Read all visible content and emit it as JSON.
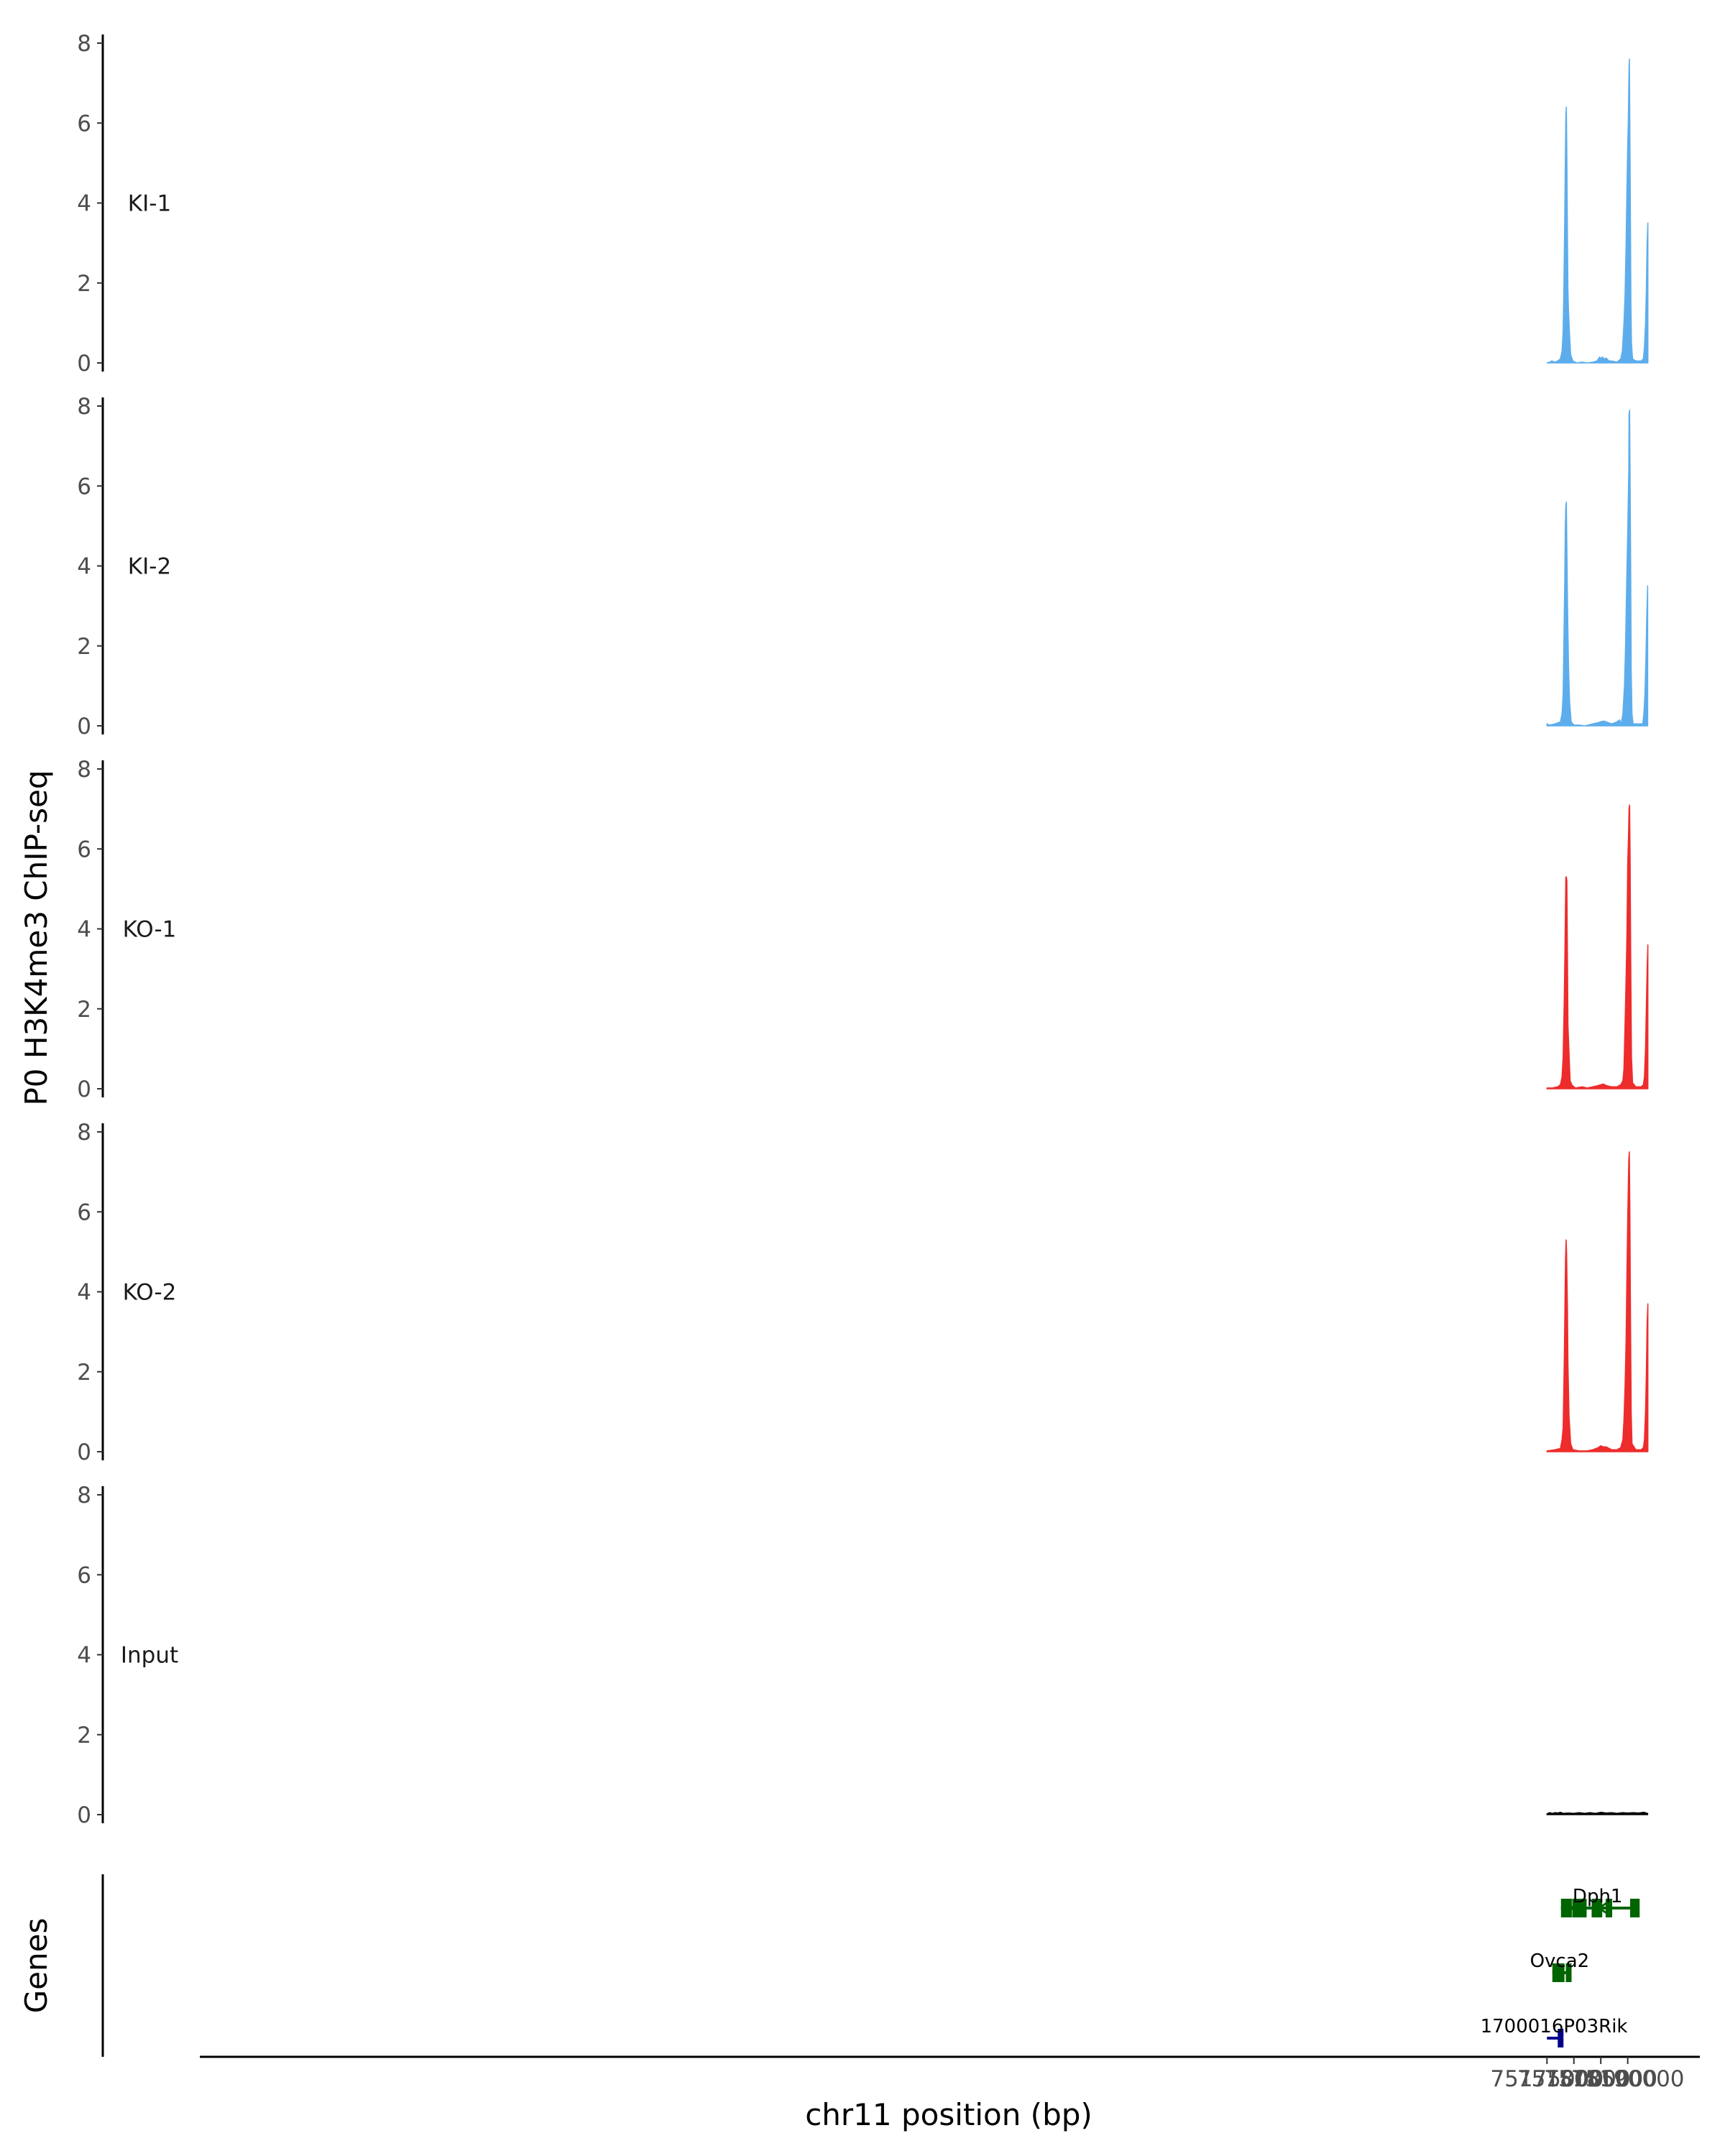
{
  "chart_data": {
    "type": "area",
    "title": "",
    "ylabel": "P0 H3K4me3 ChIP-seq",
    "xlabel": "chr11 position (bp)",
    "gene_axis_label": "Genes",
    "xlim": [
      74925000,
      75203000
    ],
    "ylim": [
      0,
      8
    ],
    "y_ticks": [
      0,
      2,
      4,
      6,
      8
    ],
    "x_ticks": [
      75175000,
      75180000,
      75185000,
      75190000
    ],
    "x_tick_labels": [
      "75175000",
      "75180000",
      "75185000",
      "75190000"
    ],
    "tracks": [
      {
        "name": "KI-1",
        "color": "#5DADEC",
        "points": [
          [
            75175000,
            0.0
          ],
          [
            75175500,
            0.02
          ],
          [
            75175900,
            0.05
          ],
          [
            75176500,
            0.02
          ],
          [
            75177000,
            0.05
          ],
          [
            75177500,
            0.1
          ],
          [
            75177800,
            0.3
          ],
          [
            75178000,
            0.8
          ],
          [
            75178150,
            2.0
          ],
          [
            75178300,
            3.6
          ],
          [
            75178400,
            5.0
          ],
          [
            75178500,
            6.2
          ],
          [
            75178600,
            6.4
          ],
          [
            75178700,
            5.2
          ],
          [
            75178800,
            3.2
          ],
          [
            75178900,
            1.8
          ],
          [
            75179000,
            1.3
          ],
          [
            75179200,
            0.7
          ],
          [
            75179400,
            0.2
          ],
          [
            75179800,
            0.05
          ],
          [
            75180500,
            0.0
          ],
          [
            75181500,
            0.02
          ],
          [
            75182500,
            0.0
          ],
          [
            75183500,
            0.02
          ],
          [
            75184300,
            0.05
          ],
          [
            75184800,
            0.15
          ],
          [
            75185000,
            0.1
          ],
          [
            75185300,
            0.15
          ],
          [
            75185600,
            0.1
          ],
          [
            75186000,
            0.12
          ],
          [
            75186500,
            0.05
          ],
          [
            75187000,
            0.05
          ],
          [
            75188000,
            0.02
          ],
          [
            75188700,
            0.1
          ],
          [
            75189000,
            0.3
          ],
          [
            75189300,
            1.0
          ],
          [
            75189500,
            1.7
          ],
          [
            75189700,
            3.0
          ],
          [
            75189850,
            4.3
          ],
          [
            75190000,
            5.4
          ],
          [
            75190100,
            6.0
          ],
          [
            75190250,
            7.4
          ],
          [
            75190320,
            7.6
          ],
          [
            75190400,
            6.0
          ],
          [
            75190500,
            3.8
          ],
          [
            75190600,
            1.5
          ],
          [
            75190700,
            0.5
          ],
          [
            75190900,
            0.1
          ],
          [
            75191500,
            0.05
          ],
          [
            75192500,
            0.05
          ],
          [
            75192900,
            0.1
          ],
          [
            75193100,
            0.4
          ],
          [
            75193300,
            1.0
          ],
          [
            75193450,
            1.8
          ],
          [
            75193600,
            3.0
          ],
          [
            75193750,
            3.5
          ],
          [
            75193750,
            0.0
          ]
        ]
      },
      {
        "name": "KI-2",
        "color": "#5DADEC",
        "points": [
          [
            75175000,
            0.05
          ],
          [
            75175500,
            0.02
          ],
          [
            75176500,
            0.05
          ],
          [
            75177500,
            0.1
          ],
          [
            75177800,
            0.3
          ],
          [
            75178000,
            0.8
          ],
          [
            75178150,
            2.2
          ],
          [
            75178300,
            3.6
          ],
          [
            75178400,
            5.0
          ],
          [
            75178500,
            5.5
          ],
          [
            75178600,
            5.6
          ],
          [
            75178700,
            4.5
          ],
          [
            75178850,
            2.8
          ],
          [
            75179000,
            1.5
          ],
          [
            75179200,
            0.6
          ],
          [
            75179500,
            0.1
          ],
          [
            75180000,
            0.02
          ],
          [
            75181000,
            0.02
          ],
          [
            75182000,
            0.0
          ],
          [
            75183500,
            0.05
          ],
          [
            75184500,
            0.08
          ],
          [
            75185000,
            0.1
          ],
          [
            75185500,
            0.12
          ],
          [
            75186000,
            0.1
          ],
          [
            75187000,
            0.05
          ],
          [
            75188000,
            0.1
          ],
          [
            75188500,
            0.15
          ],
          [
            75188800,
            0.05
          ],
          [
            75189100,
            0.3
          ],
          [
            75189400,
            1.0
          ],
          [
            75189600,
            2.0
          ],
          [
            75189800,
            3.5
          ],
          [
            75190000,
            4.8
          ],
          [
            75190200,
            6.4
          ],
          [
            75190250,
            7.8
          ],
          [
            75190350,
            7.9
          ],
          [
            75190450,
            6.2
          ],
          [
            75190550,
            4.0
          ],
          [
            75190650,
            1.4
          ],
          [
            75190800,
            0.3
          ],
          [
            75191000,
            0.05
          ],
          [
            75192000,
            0.05
          ],
          [
            75192800,
            0.05
          ],
          [
            75193000,
            0.3
          ],
          [
            75193200,
            0.8
          ],
          [
            75193400,
            1.8
          ],
          [
            75193550,
            2.8
          ],
          [
            75193700,
            3.5
          ],
          [
            75193700,
            0.0
          ]
        ]
      },
      {
        "name": "KO-1",
        "color": "#EE2C2C",
        "points": [
          [
            75175000,
            0.02
          ],
          [
            75176000,
            0.02
          ],
          [
            75177000,
            0.05
          ],
          [
            75177500,
            0.1
          ],
          [
            75177800,
            0.3
          ],
          [
            75178000,
            0.8
          ],
          [
            75178200,
            2.2
          ],
          [
            75178350,
            3.6
          ],
          [
            75178500,
            5.3
          ],
          [
            75178600,
            5.3
          ],
          [
            75178700,
            5.2
          ],
          [
            75178800,
            3.4
          ],
          [
            75178900,
            1.6
          ],
          [
            75179100,
            0.9
          ],
          [
            75179300,
            0.2
          ],
          [
            75179700,
            0.08
          ],
          [
            75180300,
            0.02
          ],
          [
            75181500,
            0.05
          ],
          [
            75182500,
            0.02
          ],
          [
            75183500,
            0.05
          ],
          [
            75184500,
            0.08
          ],
          [
            75185000,
            0.1
          ],
          [
            75185500,
            0.12
          ],
          [
            75186000,
            0.08
          ],
          [
            75187000,
            0.05
          ],
          [
            75188000,
            0.05
          ],
          [
            75188700,
            0.1
          ],
          [
            75189100,
            0.2
          ],
          [
            75189300,
            0.5
          ],
          [
            75189500,
            1.6
          ],
          [
            75189700,
            2.8
          ],
          [
            75189850,
            3.8
          ],
          [
            75190000,
            5.6
          ],
          [
            75190150,
            6.4
          ],
          [
            75190250,
            7.0
          ],
          [
            75190350,
            7.1
          ],
          [
            75190450,
            5.8
          ],
          [
            75190550,
            3.4
          ],
          [
            75190700,
            0.8
          ],
          [
            75190900,
            0.15
          ],
          [
            75191500,
            0.05
          ],
          [
            75192500,
            0.05
          ],
          [
            75192900,
            0.1
          ],
          [
            75193100,
            0.3
          ],
          [
            75193300,
            1.0
          ],
          [
            75193450,
            2.0
          ],
          [
            75193600,
            3.0
          ],
          [
            75193750,
            3.6
          ],
          [
            75193750,
            0.0
          ]
        ]
      },
      {
        "name": "KO-2",
        "color": "#EE2C2C",
        "points": [
          [
            75175000,
            0.02
          ],
          [
            75176500,
            0.05
          ],
          [
            75177500,
            0.08
          ],
          [
            75177800,
            0.3
          ],
          [
            75178000,
            0.6
          ],
          [
            75178200,
            2.2
          ],
          [
            75178350,
            3.8
          ],
          [
            75178450,
            4.8
          ],
          [
            75178550,
            5.3
          ],
          [
            75178650,
            5.0
          ],
          [
            75178800,
            3.6
          ],
          [
            75178900,
            2.2
          ],
          [
            75179100,
            0.9
          ],
          [
            75179400,
            0.2
          ],
          [
            75179800,
            0.05
          ],
          [
            75181000,
            0.02
          ],
          [
            75182500,
            0.02
          ],
          [
            75183500,
            0.05
          ],
          [
            75184500,
            0.1
          ],
          [
            75185000,
            0.15
          ],
          [
            75185500,
            0.12
          ],
          [
            75186000,
            0.12
          ],
          [
            75187000,
            0.05
          ],
          [
            75188000,
            0.05
          ],
          [
            75188700,
            0.1
          ],
          [
            75189100,
            0.3
          ],
          [
            75189300,
            0.8
          ],
          [
            75189500,
            1.6
          ],
          [
            75189700,
            2.8
          ],
          [
            75189850,
            4.4
          ],
          [
            75190000,
            5.8
          ],
          [
            75190100,
            6.6
          ],
          [
            75190200,
            7.3
          ],
          [
            75190300,
            7.5
          ],
          [
            75190400,
            6.2
          ],
          [
            75190500,
            3.8
          ],
          [
            75190650,
            1.0
          ],
          [
            75190800,
            0.2
          ],
          [
            75191500,
            0.05
          ],
          [
            75192500,
            0.05
          ],
          [
            75192900,
            0.1
          ],
          [
            75193100,
            0.3
          ],
          [
            75193300,
            1.0
          ],
          [
            75193450,
            1.9
          ],
          [
            75193600,
            3.2
          ],
          [
            75193750,
            3.7
          ],
          [
            75193750,
            0.0
          ]
        ]
      },
      {
        "name": "Input",
        "color": "#000000",
        "points": [
          [
            75175000,
            0.02
          ],
          [
            75175500,
            0.05
          ],
          [
            75176000,
            0.03
          ],
          [
            75176500,
            0.05
          ],
          [
            75177000,
            0.04
          ],
          [
            75177500,
            0.06
          ],
          [
            75178000,
            0.03
          ],
          [
            75179000,
            0.04
          ],
          [
            75180000,
            0.03
          ],
          [
            75181000,
            0.05
          ],
          [
            75182000,
            0.03
          ],
          [
            75183000,
            0.05
          ],
          [
            75184000,
            0.03
          ],
          [
            75185000,
            0.06
          ],
          [
            75186000,
            0.04
          ],
          [
            75187000,
            0.05
          ],
          [
            75188000,
            0.03
          ],
          [
            75189000,
            0.05
          ],
          [
            75190000,
            0.04
          ],
          [
            75191000,
            0.05
          ],
          [
            75192000,
            0.04
          ],
          [
            75193000,
            0.06
          ],
          [
            75193700,
            0.03
          ],
          [
            75193700,
            0.0
          ]
        ]
      }
    ],
    "genes": [
      {
        "name": "Dph1",
        "strand": "-",
        "color": "#006400",
        "row": 1,
        "start": 75177600,
        "end": 75191200,
        "exons": [
          [
            75177600,
            75178300
          ],
          [
            75178550,
            75179250
          ],
          [
            75179700,
            75179800
          ],
          [
            75180500,
            75180650
          ],
          [
            75180800,
            75180950
          ],
          [
            75181300,
            75181400
          ],
          [
            75183300,
            75183450
          ],
          [
            75183550,
            75183700
          ],
          [
            75184200,
            75184350
          ],
          [
            75185900,
            75186000
          ],
          [
            75186050,
            75186150
          ],
          [
            75190450,
            75190550
          ],
          [
            75191150,
            75191200
          ]
        ]
      },
      {
        "name": "Ovca2",
        "strand": "+",
        "color": "#006400",
        "row": 2,
        "start": 75176000,
        "end": 75178700,
        "exons": [
          [
            75176000,
            75178250
          ],
          [
            75178500,
            75178700
          ]
        ]
      },
      {
        "name": "1700016P03Rik",
        "strand": "+",
        "color": "#00008B",
        "row": 3,
        "start": 75175000,
        "end": 75177600,
        "exons": [
          [
            75177000,
            75177600
          ]
        ]
      }
    ]
  }
}
